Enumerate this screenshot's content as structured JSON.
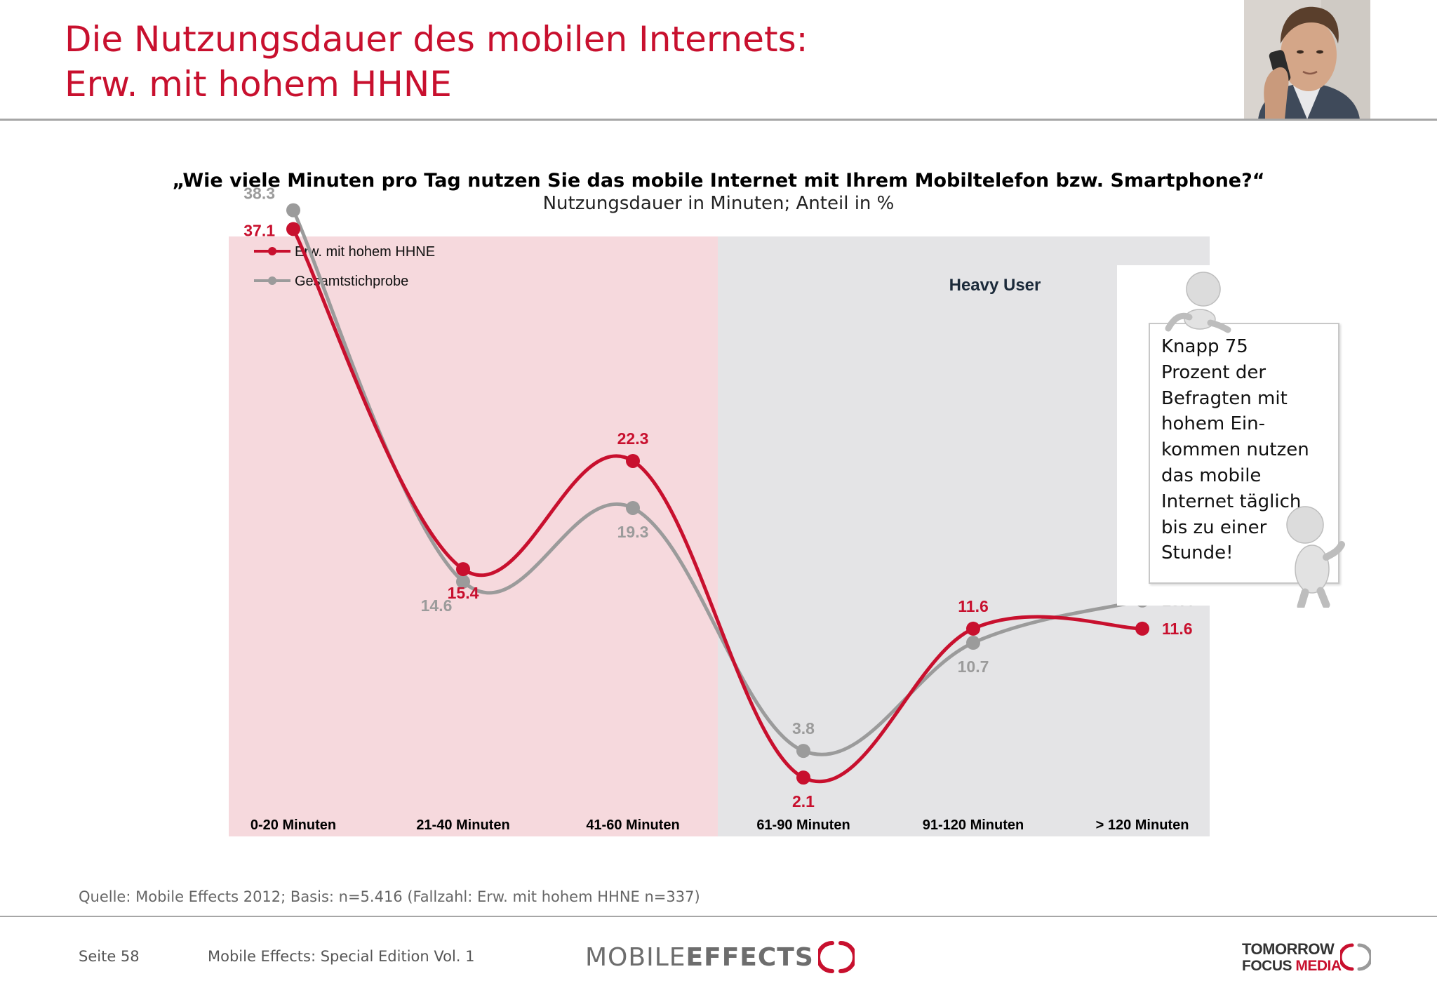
{
  "header": {
    "title_line1": "Die Nutzungsdauer des mobilen Internets:",
    "title_line2": "Erw. mit hohem HHNE"
  },
  "chart_data": {
    "type": "line",
    "title": "„Wie viele Minuten pro Tag nutzen Sie das mobile Internet mit Ihrem Mobiltelefon bzw. Smartphone?“",
    "subtitle": "Nutzungsdauer in Minuten; Anteil in %",
    "categories": [
      "0-20 Minuten",
      "21-40 Minuten",
      "41-60 Minuten",
      "61-90 Minuten",
      "91-120 Minuten",
      "> 120 Minuten"
    ],
    "series": [
      {
        "name": "Erw. mit hohem HHNE",
        "color": "#c8102e",
        "values": [
          37.1,
          15.4,
          22.3,
          2.1,
          11.6,
          11.6
        ]
      },
      {
        "name": "Gesamtstichprobe",
        "color": "#9b9b9b",
        "values": [
          38.3,
          14.6,
          19.3,
          3.8,
          10.7,
          13.4
        ]
      }
    ],
    "xlabel": "",
    "ylabel": "",
    "ylim": [
      0,
      45
    ],
    "grid": false,
    "legend_position": "top-left",
    "region_label": "Heavy User",
    "region_colors": {
      "light_users": "#f6d9dd",
      "heavy_users": "#e4e4e6"
    }
  },
  "callout": {
    "text": "Knapp 75\nProzent der\nBefragten mit\nhohem Ein-\nkommen nutzen\ndas mobile\nInternet täglich\nbis zu einer\nStunde!"
  },
  "footer": {
    "source": "Quelle: Mobile Effects 2012; Basis: n=5.416 (Fallzahl: Erw. mit hohem HHNE n=337)",
    "page": "Seite 58",
    "edition": "Mobile Effects: Special Edition Vol. 1",
    "logo_mobile": "MOBILE",
    "logo_effects": "EFFECTS",
    "logo_tomorrow": "TOMORROW",
    "logo_focus": "FOCUS",
    "logo_media": "MEDIA"
  }
}
